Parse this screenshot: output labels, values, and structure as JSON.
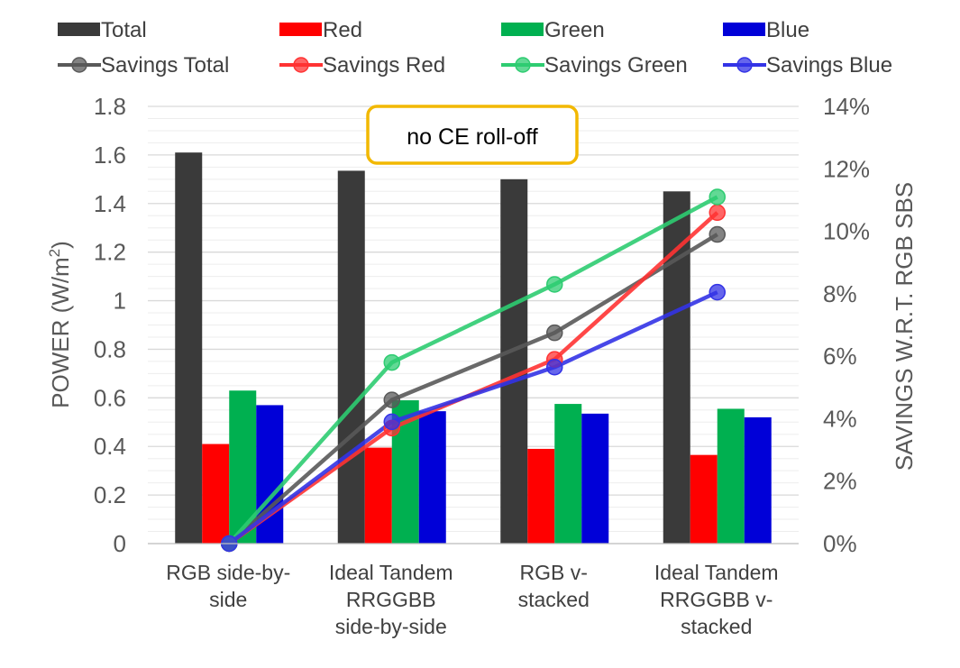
{
  "chart_data": {
    "type": "bar",
    "title": "",
    "categories": [
      [
        "RGB side-by-",
        "side"
      ],
      [
        "Ideal Tandem",
        "RRGGBB",
        "side-by-side"
      ],
      [
        "RGB v-",
        "stacked"
      ],
      [
        "Ideal Tandem",
        "RRGGBB v-",
        "stacked"
      ]
    ],
    "ylabel_left_main": "POWER (W/m",
    "ylabel_left_sup": "2",
    "ylabel_left_end": ")",
    "ylabel_right": "SAVINGS W.R.T. RGB SBS",
    "ylim_left": [
      0,
      1.8
    ],
    "yticks_left": [
      "0",
      "0.2",
      "0.4",
      "0.6",
      "0.8",
      "1",
      "1.2",
      "1.4",
      "1.6",
      "1.8"
    ],
    "ylim_right": [
      0,
      14
    ],
    "yticks_right": [
      "0%",
      "2%",
      "4%",
      "6%",
      "8%",
      "10%",
      "12%",
      "14%"
    ],
    "bar_series": [
      {
        "name": "Total",
        "color": "#3a3a3a",
        "values": [
          1.61,
          1.535,
          1.5,
          1.45
        ]
      },
      {
        "name": "Red",
        "color": "#ff0000",
        "values": [
          0.41,
          0.395,
          0.39,
          0.365
        ]
      },
      {
        "name": "Green",
        "color": "#00b050",
        "values": [
          0.63,
          0.59,
          0.575,
          0.555
        ]
      },
      {
        "name": "Blue",
        "color": "#0000d8",
        "values": [
          0.57,
          0.545,
          0.535,
          0.52
        ]
      }
    ],
    "line_series": [
      {
        "name": "Savings Total",
        "color": "#595959",
        "values": [
          0,
          4.6,
          6.75,
          9.9
        ]
      },
      {
        "name": "Savings Red",
        "color": "#ff3333",
        "values": [
          0,
          3.7,
          5.9,
          10.6
        ]
      },
      {
        "name": "Savings Green",
        "color": "#2ecc71",
        "values": [
          0,
          5.8,
          8.3,
          11.1
        ]
      },
      {
        "name": "Savings Blue",
        "color": "#3333e6",
        "values": [
          0,
          3.9,
          5.65,
          8.05
        ]
      }
    ],
    "annotation": "no CE roll-off",
    "annotation_color": "#f2b800",
    "legend_position": "top",
    "grid": true
  }
}
